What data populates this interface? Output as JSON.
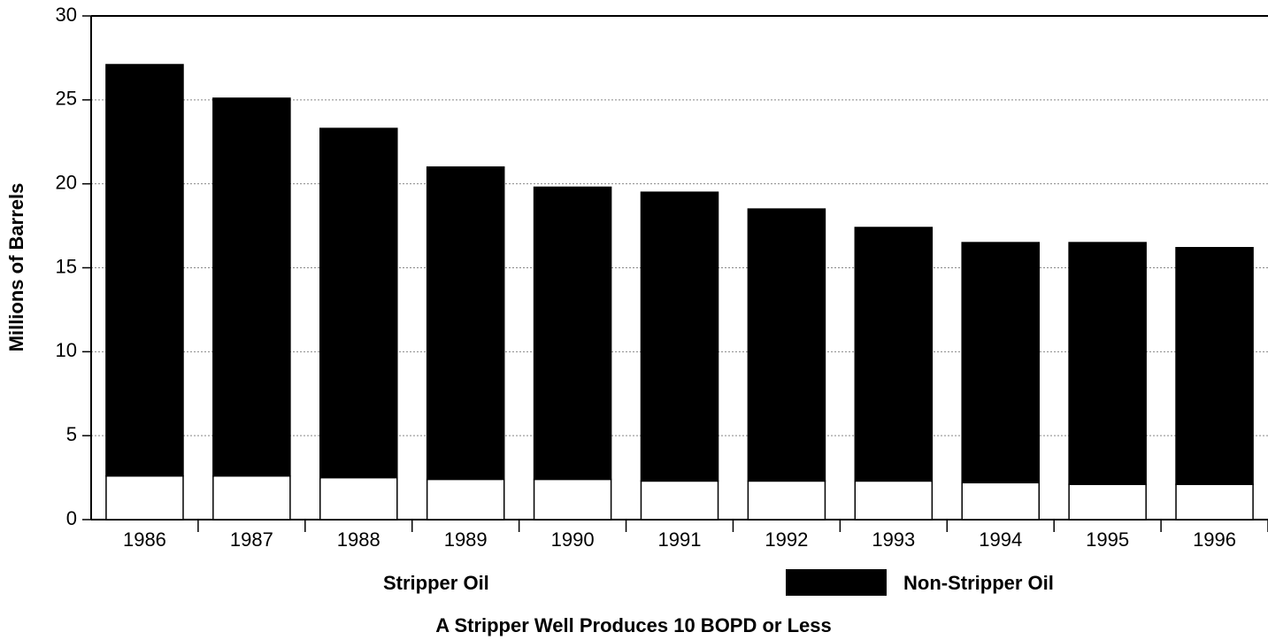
{
  "chart_data": {
    "type": "stacked_bar",
    "note": "A Stripper Well Produces 10 BOPD or Less",
    "y_label": "Millions of Barrels",
    "categories": [
      "1986",
      "1987",
      "1988",
      "1989",
      "1990",
      "1991",
      "1992",
      "1993",
      "1994",
      "1995",
      "1996"
    ],
    "series": [
      {
        "name": "Stripper Oil",
        "color": "#ffffff",
        "values": [
          2.6,
          2.6,
          2.5,
          2.4,
          2.4,
          2.3,
          2.3,
          2.3,
          2.2,
          2.1,
          2.1
        ]
      },
      {
        "name": "Non-Stripper Oil",
        "color": "#000000",
        "values": [
          24.5,
          22.5,
          20.8,
          18.6,
          17.4,
          17.2,
          16.2,
          15.1,
          14.3,
          14.4,
          14.1
        ]
      }
    ],
    "ylim": [
      0,
      30
    ],
    "yticks": [
      0,
      5,
      10,
      15,
      20,
      25,
      30
    ],
    "grid": true
  }
}
